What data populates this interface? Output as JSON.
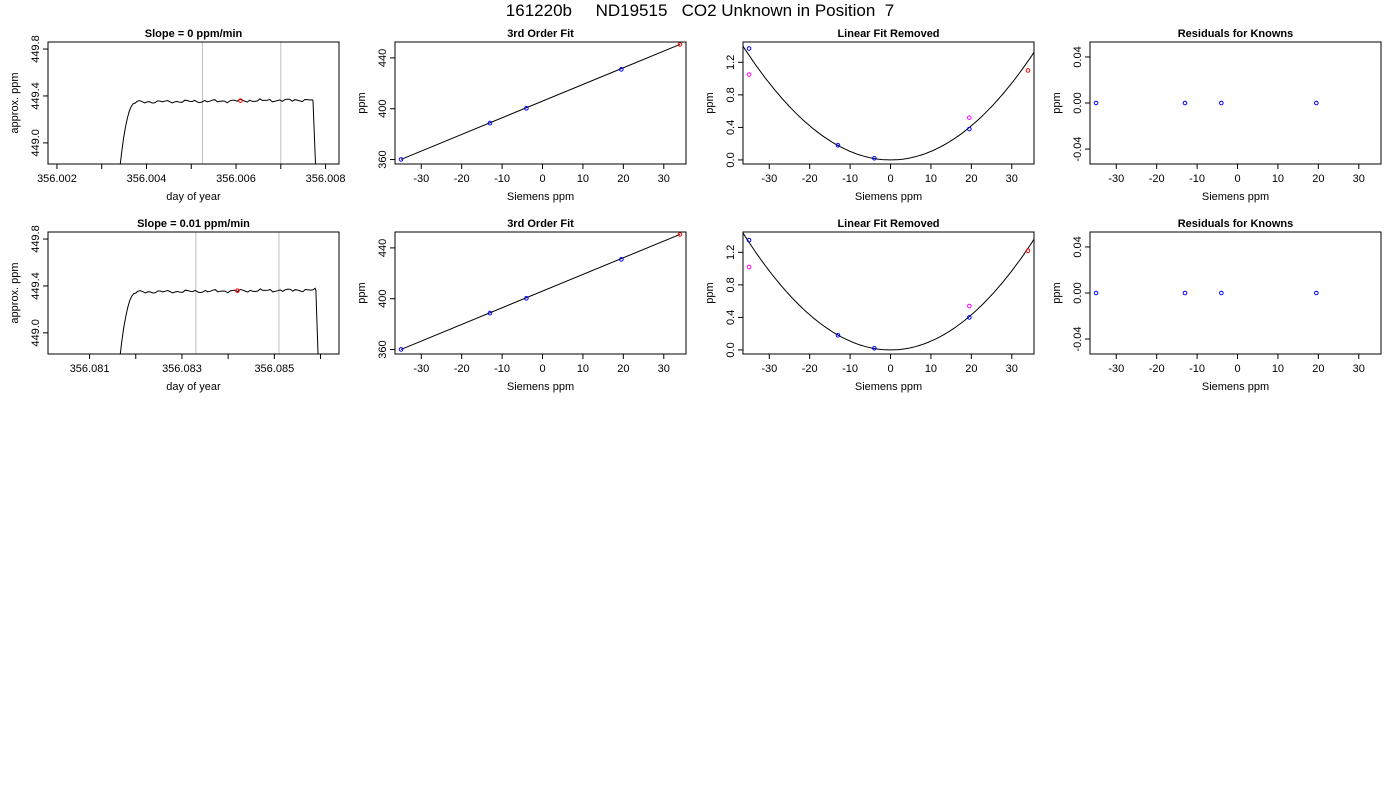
{
  "page_title": "161220b     ND19515   CO2 Unknown in Position  7",
  "colors": {
    "line": "#000000",
    "known": "#0000ff",
    "unknown": "#ff0000",
    "removed": "#ff00ff",
    "vline": "#bebebe"
  },
  "chart_data": [
    {
      "id": "r1c1",
      "type": "line",
      "title": "Slope =  0  ppm/min",
      "xlabel": "day of year",
      "ylabel": "approx. ppm",
      "xlim": [
        356.0018,
        356.0083
      ],
      "ylim": [
        448.82,
        449.86
      ],
      "xticks": [
        356.002,
        356.004,
        356.006,
        356.008
      ],
      "xtick_labels": [
        "356.002",
        "356.004",
        "356.006",
        "356.008"
      ],
      "xticks_minor": [
        356.003,
        356.005,
        356.007
      ],
      "yticks": [
        449.0,
        449.4,
        449.8
      ],
      "ytick_labels": [
        "449.0",
        "449.4",
        "449.8"
      ],
      "vlines": [
        356.00525,
        356.007
      ],
      "trace": {
        "start": 356.0034,
        "rise_end": 356.00375,
        "plateau": [
          449.33,
          449.39
        ],
        "fall_start": 356.00772,
        "end": 356.00778
      },
      "points": [
        {
          "x": 356.0061,
          "y": 449.36,
          "color": "unknown"
        }
      ]
    },
    {
      "id": "r1c2",
      "type": "scatter",
      "title": "3rd Order Fit",
      "xlabel": "Siemens ppm",
      "ylabel": "ppm",
      "xlim": [
        -36.5,
        35.5
      ],
      "ylim": [
        356.5,
        452.5
      ],
      "xticks": [
        -30,
        -20,
        -10,
        0,
        10,
        20,
        30
      ],
      "xtick_labels": [
        "-30",
        "-20",
        "-10",
        "0",
        "10",
        "20",
        "30"
      ],
      "yticks": [
        360,
        400,
        440
      ],
      "ytick_labels": [
        "360",
        "400",
        "440"
      ],
      "curve": [
        [
          -35,
          360.1
        ],
        [
          34,
          450.6
        ]
      ],
      "points": [
        {
          "x": -35,
          "y": 360.1,
          "color": "known"
        },
        {
          "x": -13,
          "y": 388.7,
          "color": "known"
        },
        {
          "x": -4,
          "y": 400.3,
          "color": "known"
        },
        {
          "x": 19.5,
          "y": 431.0,
          "color": "known"
        },
        {
          "x": 34,
          "y": 450.6,
          "color": "unknown"
        }
      ]
    },
    {
      "id": "r1c3",
      "type": "scatter",
      "title": "Linear Fit Removed",
      "xlabel": "Siemens ppm",
      "ylabel": "ppm",
      "xlim": [
        -36.5,
        35.5
      ],
      "ylim": [
        -0.05,
        1.45
      ],
      "xticks": [
        -30,
        -20,
        -10,
        0,
        10,
        20,
        30
      ],
      "xtick_labels": [
        "-30",
        "-20",
        "-10",
        "0",
        "10",
        "20",
        "30"
      ],
      "yticks": [
        0.0,
        0.4,
        0.8,
        1.2
      ],
      "ytick_labels": [
        "0.0",
        "0.4",
        "0.8",
        "1.2"
      ],
      "curve_quadratic": {
        "a": 0.00105,
        "vertex": 0,
        "min": 0.0
      },
      "points": [
        {
          "x": -35,
          "y": 1.37,
          "color": "known"
        },
        {
          "x": -13,
          "y": 0.18,
          "color": "known"
        },
        {
          "x": -4,
          "y": 0.02,
          "color": "known"
        },
        {
          "x": 19.5,
          "y": 0.38,
          "color": "known"
        },
        {
          "x": 34,
          "y": 1.1,
          "color": "unknown"
        },
        {
          "x": -35,
          "y": 1.05,
          "color": "removed"
        },
        {
          "x": 19.5,
          "y": 0.52,
          "color": "removed"
        }
      ]
    },
    {
      "id": "r1c4",
      "type": "scatter",
      "title": "Residuals for Knowns",
      "xlabel": "Siemens ppm",
      "ylabel": "ppm",
      "xlim": [
        -36.5,
        35.5
      ],
      "ylim": [
        -0.053,
        0.053
      ],
      "xticks": [
        -30,
        -20,
        -10,
        0,
        10,
        20,
        30
      ],
      "xtick_labels": [
        "-30",
        "-20",
        "-10",
        "0",
        "10",
        "20",
        "30"
      ],
      "yticks": [
        -0.04,
        0.0,
        0.04
      ],
      "ytick_labels": [
        "-0.04",
        "0.00",
        "0.04"
      ],
      "points": [
        {
          "x": -35,
          "y": 0,
          "color": "known"
        },
        {
          "x": -13,
          "y": 0,
          "color": "known"
        },
        {
          "x": -4,
          "y": 0,
          "color": "known"
        },
        {
          "x": 19.5,
          "y": 0,
          "color": "known"
        }
      ]
    },
    {
      "id": "r2c1",
      "type": "line",
      "title": "Slope =  0.01  ppm/min",
      "xlabel": "day of year",
      "ylabel": "approx. ppm",
      "xlim": [
        356.0801,
        356.0864
      ],
      "ylim": [
        448.82,
        449.86
      ],
      "xticks": [
        356.081,
        356.083,
        356.085
      ],
      "xtick_labels": [
        "356.081",
        "356.083",
        "356.085"
      ],
      "xticks_minor": [
        356.082,
        356.084,
        356.086
      ],
      "yticks": [
        449.0,
        449.4,
        449.8
      ],
      "ytick_labels": [
        "449.0",
        "449.4",
        "449.8"
      ],
      "vlines": [
        356.0833,
        356.0851
      ],
      "trace": {
        "start": 356.08165,
        "rise_end": 356.082,
        "plateau": [
          449.33,
          449.39
        ],
        "fall_start": 356.0859,
        "end": 356.08595
      },
      "points": [
        {
          "x": 356.0842,
          "y": 449.36,
          "color": "unknown"
        }
      ]
    },
    {
      "id": "r2c2",
      "type": "scatter",
      "title": "3rd Order Fit",
      "xlabel": "Siemens ppm",
      "ylabel": "ppm",
      "xlim": [
        -36.5,
        35.5
      ],
      "ylim": [
        356.5,
        452.5
      ],
      "xticks": [
        -30,
        -20,
        -10,
        0,
        10,
        20,
        30
      ],
      "xtick_labels": [
        "-30",
        "-20",
        "-10",
        "0",
        "10",
        "20",
        "30"
      ],
      "yticks": [
        360,
        400,
        440
      ],
      "ytick_labels": [
        "360",
        "400",
        "440"
      ],
      "curve": [
        [
          -35,
          360.1
        ],
        [
          34,
          450.6
        ]
      ],
      "points": [
        {
          "x": -35,
          "y": 360.1,
          "color": "known"
        },
        {
          "x": -13,
          "y": 388.7,
          "color": "known"
        },
        {
          "x": -4,
          "y": 400.3,
          "color": "known"
        },
        {
          "x": 19.5,
          "y": 431.0,
          "color": "known"
        },
        {
          "x": 34,
          "y": 450.6,
          "color": "unknown"
        }
      ]
    },
    {
      "id": "r2c3",
      "type": "scatter",
      "title": "Linear Fit Removed",
      "xlabel": "Siemens ppm",
      "ylabel": "ppm",
      "xlim": [
        -36.5,
        35.5
      ],
      "ylim": [
        -0.05,
        1.45
      ],
      "xticks": [
        -30,
        -20,
        -10,
        0,
        10,
        20,
        30
      ],
      "xtick_labels": [
        "-30",
        "-20",
        "-10",
        "0",
        "10",
        "20",
        "30"
      ],
      "yticks": [
        0.0,
        0.4,
        0.8,
        1.2
      ],
      "ytick_labels": [
        "0.0",
        "0.4",
        "0.8",
        "1.2"
      ],
      "curve_quadratic": {
        "a": 0.00108,
        "vertex": 0,
        "min": 0.0
      },
      "points": [
        {
          "x": -35,
          "y": 1.35,
          "color": "known"
        },
        {
          "x": -13,
          "y": 0.18,
          "color": "known"
        },
        {
          "x": -4,
          "y": 0.02,
          "color": "known"
        },
        {
          "x": 19.5,
          "y": 0.4,
          "color": "known"
        },
        {
          "x": 34,
          "y": 1.22,
          "color": "unknown"
        },
        {
          "x": -35,
          "y": 1.02,
          "color": "removed"
        },
        {
          "x": 19.5,
          "y": 0.54,
          "color": "removed"
        }
      ]
    },
    {
      "id": "r2c4",
      "type": "scatter",
      "title": "Residuals for Knowns",
      "xlabel": "Siemens ppm",
      "ylabel": "ppm",
      "xlim": [
        -36.5,
        35.5
      ],
      "ylim": [
        -0.053,
        0.053
      ],
      "xticks": [
        -30,
        -20,
        -10,
        0,
        10,
        20,
        30
      ],
      "xtick_labels": [
        "-30",
        "-20",
        "-10",
        "0",
        "10",
        "20",
        "30"
      ],
      "yticks": [
        -0.04,
        0.0,
        0.04
      ],
      "ytick_labels": [
        "-0.04",
        "0.00",
        "0.04"
      ],
      "points": [
        {
          "x": -35,
          "y": 0,
          "color": "known"
        },
        {
          "x": -13,
          "y": 0,
          "color": "known"
        },
        {
          "x": -4,
          "y": 0,
          "color": "known"
        },
        {
          "x": 19.5,
          "y": 0,
          "color": "known"
        }
      ]
    }
  ]
}
